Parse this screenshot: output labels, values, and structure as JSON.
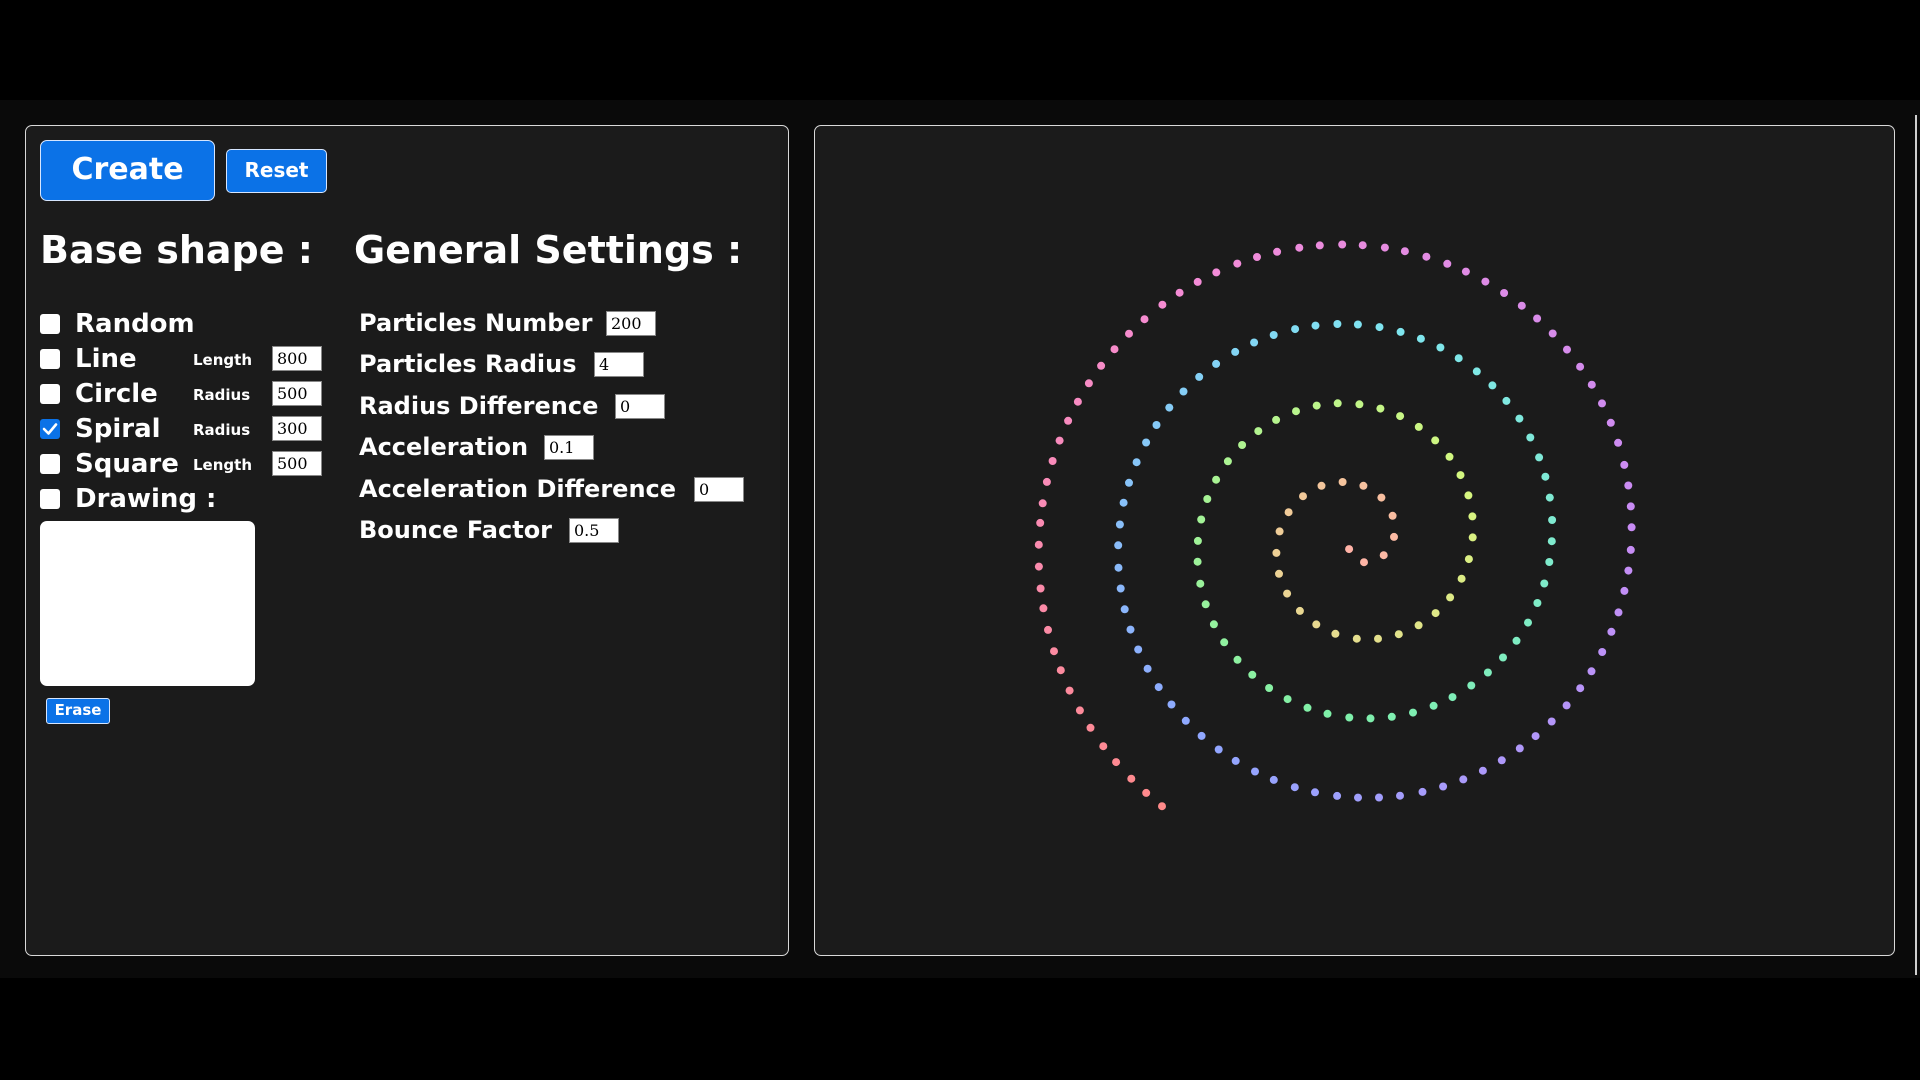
{
  "buttons": {
    "create": "Create",
    "reset": "Reset",
    "erase": "Erase"
  },
  "base_shape": {
    "heading": "Base shape :",
    "options": [
      {
        "label": "Random",
        "checked": false
      },
      {
        "label": "Line",
        "checked": false,
        "param_label": "Length",
        "param_value": "800"
      },
      {
        "label": "Circle",
        "checked": false,
        "param_label": "Radius",
        "param_value": "500"
      },
      {
        "label": "Spiral",
        "checked": true,
        "param_label": "Radius",
        "param_value": "300"
      },
      {
        "label": "Square",
        "checked": false,
        "param_label": "Length",
        "param_value": "500"
      },
      {
        "label": "Drawing :",
        "checked": false
      }
    ]
  },
  "general_settings": {
    "heading": "General Settings :",
    "fields": [
      {
        "label": "Particles Number",
        "value": "200"
      },
      {
        "label": "Particles Radius",
        "value": "4"
      },
      {
        "label": "Radius Difference",
        "value": "0"
      },
      {
        "label": "Acceleration",
        "value": "0.1"
      },
      {
        "label": "Acceleration Difference",
        "value": "0"
      },
      {
        "label": "Bounce Factor",
        "value": "0.5"
      }
    ]
  },
  "canvas": {
    "shape": "spiral",
    "particle_count": 200,
    "spiral_turns": 4,
    "colors": {
      "background": "#1b1b1b",
      "accent": "#0b72e7",
      "gradient": [
        "#ffb3a7",
        "#d6f77f",
        "#7ff0a8",
        "#7fe6f0",
        "#8fa7ff",
        "#c88cf5",
        "#f58cd6",
        "#ff8a8a"
      ]
    }
  }
}
